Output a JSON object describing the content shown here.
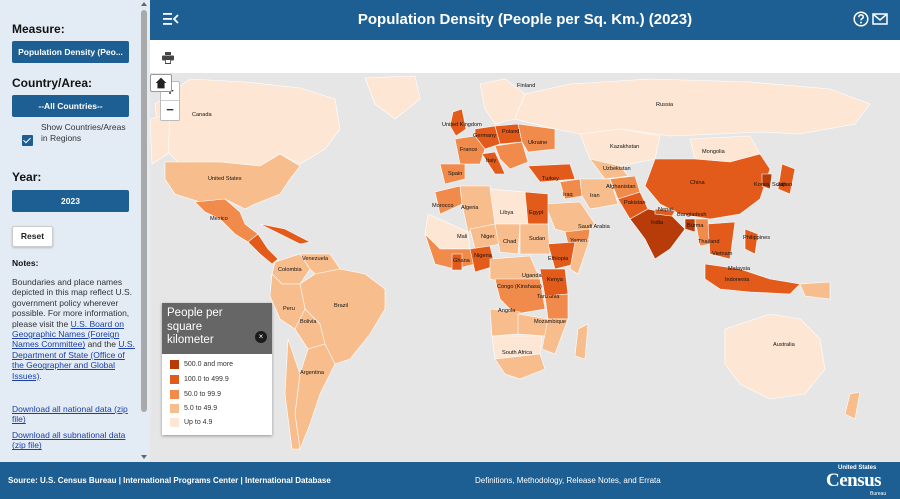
{
  "header": {
    "title": "Population Density (People per Sq. Km.) (2023)"
  },
  "sidebar": {
    "measure_label": "Measure:",
    "measure_value": "Population Density (Peo...",
    "country_label": "Country/Area:",
    "country_value": "--All Countries--",
    "show_regions_label": "Show Countries/Areas in Regions",
    "show_regions_checked": true,
    "year_label": "Year:",
    "year_value": "2023",
    "reset_label": "Reset",
    "notes_heading": "Notes:",
    "notes_text": "Boundaries and place names depicted in this map reflect U.S. government policy wherever possible. For more information, please visit the",
    "notes_link1": "U.S. Board on Geographic Names (Foreign Names Committee)",
    "notes_and": " and the ",
    "notes_link2": "U.S. Department of State (Office of the Geographer and Global Issues)",
    "notes_end": ".",
    "download_national": "Download all national data (zip file)",
    "download_subnational": "Download all subnational data (zip file)"
  },
  "map": {
    "zoom_in": "+",
    "zoom_out": "−",
    "countries": [
      "Canada",
      "United States",
      "Mexico",
      "Venezuela",
      "Colombia",
      "Peru",
      "Brazil",
      "Bolivia",
      "Argentina",
      "Finland",
      "Russia",
      "United Kingdom",
      "Germany",
      "Poland",
      "France",
      "Ukraine",
      "Spain",
      "Italy",
      "Turkey",
      "Kazakhstan",
      "Mongolia",
      "Uzbekistan",
      "Iraq",
      "Iran",
      "Afghanistan",
      "Pakistan",
      "China",
      "Korea, South",
      "Japan",
      "Nepal",
      "India",
      "Bangladesh",
      "Burma",
      "Thailand",
      "Vietnam",
      "Philippines",
      "Malaysia",
      "Indonesia",
      "Australia",
      "Morocco",
      "Algeria",
      "Libya",
      "Egypt",
      "Saudi Arabia",
      "Yemen",
      "Mali",
      "Niger",
      "Chad",
      "Sudan",
      "Ghana",
      "Nigeria",
      "Ethiopia",
      "Uganda",
      "Kenya",
      "Congo (Kinshasa)",
      "Tanzania",
      "Angola",
      "Mozambique",
      "South Africa"
    ]
  },
  "legend": {
    "title": "People per square kilometer",
    "close_icon": "×",
    "items": [
      {
        "label": "500.0 and more",
        "color": "#b83c0a"
      },
      {
        "label": "100.0 to 499.9",
        "color": "#e35b1a"
      },
      {
        "label": "50.0 to 99.9",
        "color": "#f08b4c"
      },
      {
        "label": "5.0 to 49.9",
        "color": "#f8bd8c"
      },
      {
        "label": "Up to 4.9",
        "color": "#fde6d4"
      }
    ]
  },
  "footer": {
    "source": "Source: U.S. Census Bureau | International Programs Center | International Database",
    "links": "Definitions, Methodology, Release Notes, and Errata",
    "logo_top": "United States",
    "logo_main": "Census",
    "logo_bottom": "Bureau"
  },
  "colors": {
    "brand": "#1d5f93",
    "sidebar_bg": "#e3ecf5",
    "ocean": "#e6e6e6"
  }
}
